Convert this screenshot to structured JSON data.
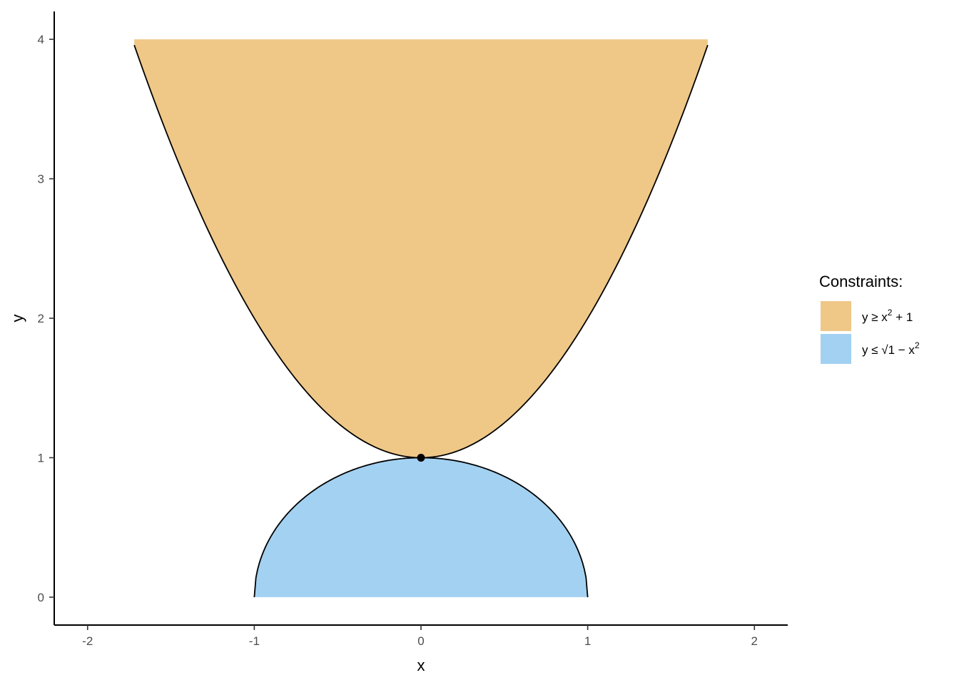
{
  "chart_data": {
    "type": "area",
    "title": "",
    "xlabel": "x",
    "ylabel": "y",
    "xlim": [
      -2.2,
      2.2
    ],
    "ylim": [
      -0.2,
      4.2
    ],
    "x_ticks": [
      -2,
      -1,
      0,
      1,
      2
    ],
    "x_tick_labels": [
      "-2",
      "-1",
      "0",
      "1",
      "2"
    ],
    "y_ticks": [
      0,
      1,
      2,
      3,
      4
    ],
    "y_tick_labels": [
      "0",
      "1",
      "2",
      "3",
      "4"
    ],
    "grid": false,
    "legend_position": "right",
    "legend_title": "Constraints:",
    "series": [
      {
        "name": "y ≥ x² + 1",
        "legend": {
          "pre": "y ≥ x",
          "sup": "2",
          "post": " + 1"
        },
        "fill": "#EFC787",
        "region": "above",
        "function": "x^2 + 1",
        "x_range": [
          -1.72,
          1.72
        ],
        "y_cap": 4
      },
      {
        "name": "y ≤ √(1 − x²)",
        "legend": {
          "pre": "y ≤ √1 − x",
          "sup": "2",
          "post": ""
        },
        "fill": "#A3D1F1",
        "region": "below",
        "function": "sqrt(1 - x^2)",
        "x_range": [
          -1,
          1
        ],
        "y_floor": 0
      }
    ],
    "points": [
      {
        "x": 0,
        "y": 1
      }
    ]
  }
}
